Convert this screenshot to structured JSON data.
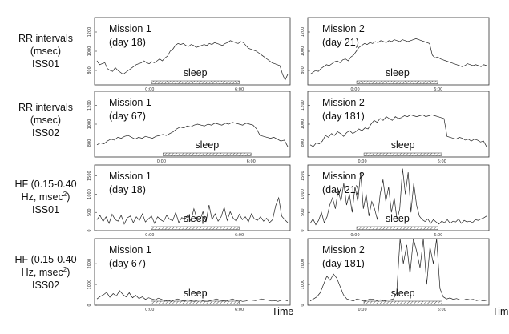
{
  "row_labels": [
    {
      "line1": "RR intervals",
      "line2": "(msec)",
      "line3": "ISS01"
    },
    {
      "line1": "RR intervals",
      "line2": "(msec)",
      "line3": "ISS02"
    },
    {
      "line1": "HF (0.15-0.40",
      "line2a": "Hz, msec",
      "line2b": "2",
      "line2c": ")",
      "line3": "ISS01"
    },
    {
      "line1": "HF (0.15-0.40",
      "line2a": "Hz, msec",
      "line2b": "2",
      "line2c": ")",
      "line3": "ISS02"
    }
  ],
  "time_label_left": "Time",
  "time_label_right": "Tim",
  "chart_data": [
    {
      "type": "line",
      "mission": "Mission 1",
      "day": "(day 18)",
      "annotation": "sleep",
      "yticks": [
        "800",
        "1000",
        "1200"
      ],
      "ylim": [
        650,
        1350
      ],
      "xticks": [
        "0:00",
        "6:00"
      ],
      "sleep_range": [
        0.29,
        0.74
      ],
      "values": [
        900,
        860,
        870,
        880,
        820,
        800,
        790,
        830,
        800,
        780,
        760,
        780,
        800,
        820,
        840,
        860,
        870,
        880,
        900,
        880,
        870,
        890,
        880,
        900,
        920,
        900,
        930,
        950,
        1000,
        1020,
        1060,
        1080,
        1070,
        1080,
        1060,
        1050,
        1070,
        1060,
        1040,
        1050,
        1060,
        1070,
        1060,
        1080,
        1070,
        1090,
        1080,
        1070,
        1060,
        1080,
        1090,
        1110,
        1100,
        1090,
        1080,
        1100,
        1090,
        1060,
        1030,
        1020,
        1010,
        1000,
        980,
        960,
        940,
        920,
        900,
        880,
        870,
        860,
        850,
        760,
        700,
        760
      ]
    },
    {
      "type": "line",
      "mission": "Mission 2",
      "day": "(day 21)",
      "annotation": "sleep",
      "yticks": [
        "800",
        "1000",
        "1200"
      ],
      "ylim": [
        650,
        1350
      ],
      "xticks": [
        "0:00",
        "6:00"
      ],
      "sleep_range": [
        0.27,
        0.72
      ],
      "values": [
        760,
        780,
        800,
        790,
        820,
        840,
        860,
        850,
        870,
        890,
        900,
        880,
        910,
        920,
        900,
        940,
        960,
        1000,
        1040,
        1060,
        1080,
        1070,
        1090,
        1080,
        1100,
        1090,
        1110,
        1100,
        1090,
        1110,
        1100,
        1120,
        1110,
        1100,
        1120,
        1110,
        1100,
        1110,
        1120,
        1130,
        1120,
        1110,
        1100,
        1090,
        1080,
        960,
        930,
        940,
        920,
        910,
        900,
        890,
        880,
        870,
        860,
        850,
        840,
        850,
        870,
        860,
        850,
        860,
        850,
        840,
        860,
        850
      ]
    },
    {
      "type": "line",
      "mission": "Mission 1",
      "day": "(day 67)",
      "annotation": "sleep",
      "yticks": [
        "800",
        "1000",
        "1200"
      ],
      "ylim": [
        650,
        1350
      ],
      "xticks": [
        "0:00",
        "6:00"
      ],
      "sleep_range": [
        0.35,
        0.8
      ],
      "values": [
        780,
        800,
        790,
        820,
        840,
        830,
        860,
        850,
        870,
        880,
        860,
        840,
        860,
        850,
        870,
        860,
        850,
        870,
        880,
        890,
        880,
        900,
        920,
        950,
        970,
        960,
        980,
        970,
        990,
        1000,
        990,
        980,
        1000,
        990,
        1010,
        1000,
        990,
        1010,
        1000,
        1020,
        1010,
        1000,
        990,
        1010,
        1000,
        990,
        950,
        880,
        870,
        860,
        850,
        860,
        840,
        820,
        830,
        760
      ]
    },
    {
      "type": "line",
      "mission": "Mission 2",
      "day": "(day 181)",
      "annotation": "sleep",
      "yticks": [
        "800",
        "1000",
        "1200"
      ],
      "ylim": [
        650,
        1350
      ],
      "xticks": [
        "0:00",
        "6:00"
      ],
      "sleep_range": [
        0.31,
        0.74
      ],
      "values": [
        780,
        760,
        800,
        790,
        820,
        880,
        860,
        900,
        880,
        920,
        900,
        870,
        910,
        930,
        900,
        920,
        950,
        930,
        960,
        950,
        1000,
        1040,
        1020,
        1060,
        1040,
        1080,
        1060,
        1040,
        1080,
        1060,
        1070,
        1090,
        1080,
        1100,
        1090,
        1080,
        1090,
        1100,
        1080,
        1090,
        1100,
        1090,
        1080,
        1070,
        1060,
        870,
        860,
        850,
        840,
        860,
        850,
        830,
        840,
        820,
        840,
        830,
        810,
        820,
        760
      ]
    },
    {
      "type": "line",
      "mission": "Mission 1",
      "day": "(day 18)",
      "annotation": "sleep",
      "yticks": [
        "0",
        "500",
        "1000",
        "1500"
      ],
      "ylim": [
        0,
        1800
      ],
      "xticks": [
        "0:00",
        "6:00"
      ],
      "sleep_range": [
        0.29,
        0.74
      ],
      "values": [
        300,
        420,
        250,
        380,
        200,
        450,
        300,
        260,
        420,
        180,
        350,
        400,
        220,
        380,
        280,
        460,
        240,
        320,
        400,
        200,
        380,
        300,
        250,
        420,
        310,
        270,
        500,
        220,
        360,
        300,
        440,
        260,
        600,
        320,
        280,
        520,
        240,
        700,
        300,
        460,
        260,
        380,
        640,
        280,
        520,
        340,
        260,
        450,
        300,
        380,
        240,
        460,
        320,
        280,
        380,
        260,
        340,
        220,
        300,
        680,
        900,
        400,
        300,
        220
      ]
    },
    {
      "type": "line",
      "mission": "Mission 2",
      "day": "(day 21)",
      "annotation": "sleep",
      "yticks": [
        "0",
        "500",
        "1000",
        "1500"
      ],
      "ylim": [
        0,
        1800
      ],
      "xticks": [
        "0:00",
        "6:00"
      ],
      "sleep_range": [
        0.27,
        0.72
      ],
      "values": [
        200,
        320,
        160,
        280,
        500,
        220,
        380,
        700,
        900,
        600,
        1100,
        800,
        1300,
        700,
        1000,
        500,
        1200,
        800,
        1600,
        600,
        1000,
        400,
        800,
        600,
        300,
        1000,
        1400,
        800,
        1200,
        500,
        900,
        300,
        600,
        1700,
        1000,
        1600,
        500,
        1300,
        700,
        400,
        300,
        250,
        320,
        200,
        300,
        240,
        180,
        260,
        220,
        300,
        200,
        260,
        240,
        320,
        200,
        280,
        240,
        260,
        220,
        300,
        280,
        320,
        350,
        400
      ]
    },
    {
      "type": "line",
      "mission": "Mission 1",
      "day": "(day 67)",
      "annotation": "sleep",
      "yticks": [
        "0",
        "1000",
        "2000"
      ],
      "ylim": [
        0,
        3200
      ],
      "xticks": [
        "0:00",
        "6:00"
      ],
      "sleep_range": [
        0.29,
        0.74
      ],
      "values": [
        300,
        420,
        500,
        620,
        380,
        560,
        440,
        700,
        520,
        400,
        600,
        360,
        480,
        320,
        400,
        280,
        360,
        300,
        260,
        340,
        280,
        200,
        240,
        180,
        260,
        300,
        240,
        200,
        260,
        220,
        180,
        240,
        260,
        200,
        180,
        220,
        260,
        300,
        240,
        220,
        200,
        260,
        300,
        220,
        240,
        180,
        200,
        260,
        240,
        220,
        260,
        300,
        260,
        240,
        200,
        220,
        180,
        240,
        260,
        200
      ]
    },
    {
      "type": "line",
      "mission": "Mission 2",
      "day": "(day 181)",
      "annotation": "sleep",
      "yticks": [
        "0",
        "1000",
        "2000"
      ],
      "ylim": [
        0,
        3200
      ],
      "xticks": [
        "0:00",
        "6:00"
      ],
      "sleep_range": [
        0.31,
        0.74
      ],
      "values": [
        200,
        300,
        400,
        600,
        1000,
        1400,
        1200,
        1500,
        1300,
        900,
        500,
        300,
        250,
        200,
        300,
        260,
        200,
        240,
        300,
        280,
        220,
        260,
        200,
        240,
        260,
        300,
        600,
        3200,
        2000,
        2900,
        1500,
        3200,
        2600,
        1800,
        3200,
        1000,
        2800,
        2000,
        3200,
        800,
        400,
        300,
        350,
        280,
        320,
        260,
        240,
        300,
        260,
        280,
        220,
        260,
        200,
        240
      ]
    }
  ]
}
